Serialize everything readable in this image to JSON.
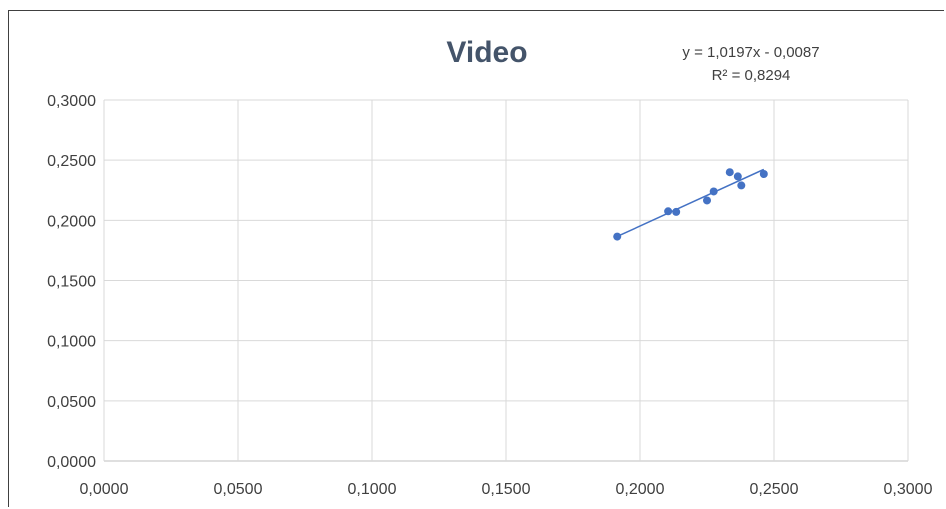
{
  "chart_data": {
    "type": "scatter",
    "title": "Video",
    "xlabel": "",
    "ylabel": "",
    "xlim": [
      0,
      0.3
    ],
    "ylim": [
      0,
      0.3
    ],
    "x_ticks": [
      "0,0000",
      "0,0500",
      "0,1000",
      "0,1500",
      "0,2000",
      "0,2500",
      "0,3000"
    ],
    "y_ticks": [
      "0,0000",
      "0,0500",
      "0,1000",
      "0,1500",
      "0,2000",
      "0,2500",
      "0,3000"
    ],
    "grid": true,
    "legend": "none",
    "series": [
      {
        "color": "#4472c4",
        "points": [
          {
            "x": 0.1915,
            "y": 0.1865
          },
          {
            "x": 0.2105,
            "y": 0.2075
          },
          {
            "x": 0.2135,
            "y": 0.207
          },
          {
            "x": 0.225,
            "y": 0.2165
          },
          {
            "x": 0.2275,
            "y": 0.224
          },
          {
            "x": 0.2335,
            "y": 0.24
          },
          {
            "x": 0.2365,
            "y": 0.2365
          },
          {
            "x": 0.2378,
            "y": 0.229
          },
          {
            "x": 0.2462,
            "y": 0.2385
          }
        ]
      }
    ],
    "trendline": {
      "type": "linear",
      "slope": 1.0197,
      "intercept": -0.0087,
      "x_range": [
        0.1915,
        0.2462
      ],
      "equation_label": "y = 1,0197x - 0,0087",
      "r2_label": "R² = 0,8294"
    }
  }
}
